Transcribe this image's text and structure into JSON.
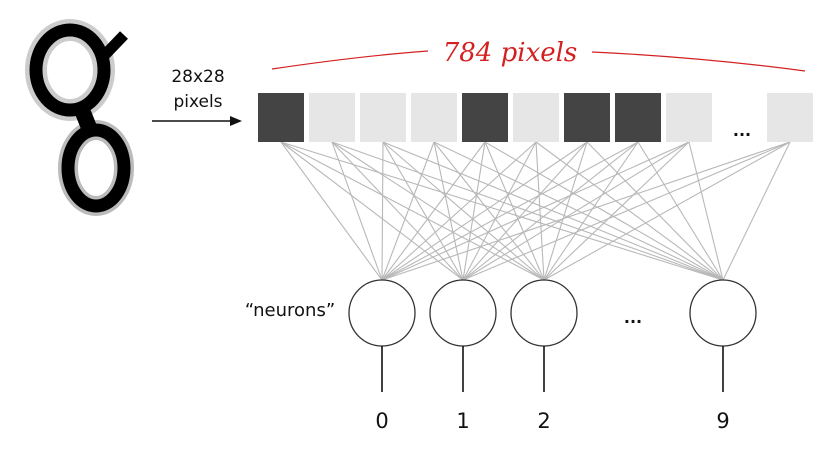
{
  "input_label_line1": "28x28",
  "input_label_line2": "pixels",
  "brace_label": "784 pixels",
  "pixel_row": [
    "dark",
    "light",
    "light",
    "light",
    "dark",
    "light",
    "dark",
    "dark",
    "light"
  ],
  "pixel_ellipsis": "...",
  "neurons_label": "“neurons”",
  "neuron_ellipsis": "...",
  "outputs": [
    "0",
    "1",
    "2",
    "9"
  ],
  "colors": {
    "dark": "#444444",
    "light": "#e6e6e6",
    "brace": "#d32020",
    "connection": "#b8b8b8"
  }
}
